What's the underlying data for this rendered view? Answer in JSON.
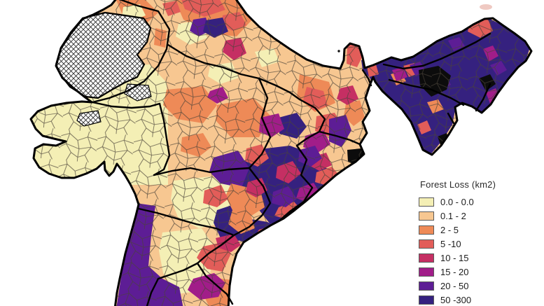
{
  "legend": {
    "title": "Forest Loss (km2)",
    "items": [
      {
        "label": "0.0 - 0.0",
        "color": "#f4efb5"
      },
      {
        "label": "0.1 - 2",
        "color": "#f7c791"
      },
      {
        "label": "2 - 5",
        "color": "#ee8a57"
      },
      {
        "label": "5 -10",
        "color": "#e25d59"
      },
      {
        "label": "10 - 15",
        "color": "#c52f63"
      },
      {
        "label": "15 - 20",
        "color": "#a11d89"
      },
      {
        "label": "20 - 50",
        "color": "#5d1d95"
      },
      {
        "label": "50 -300",
        "color": "#35217f"
      }
    ]
  },
  "map": {
    "subject": "India district-level choropleth",
    "no_data_style": "crosshatch",
    "colors": {
      "state_border": "#000000",
      "district_line": "#4a4238",
      "black_patch": "#0c0c0c",
      "hatch_line": "#2e2e2e",
      "background": "#ffffff"
    }
  }
}
